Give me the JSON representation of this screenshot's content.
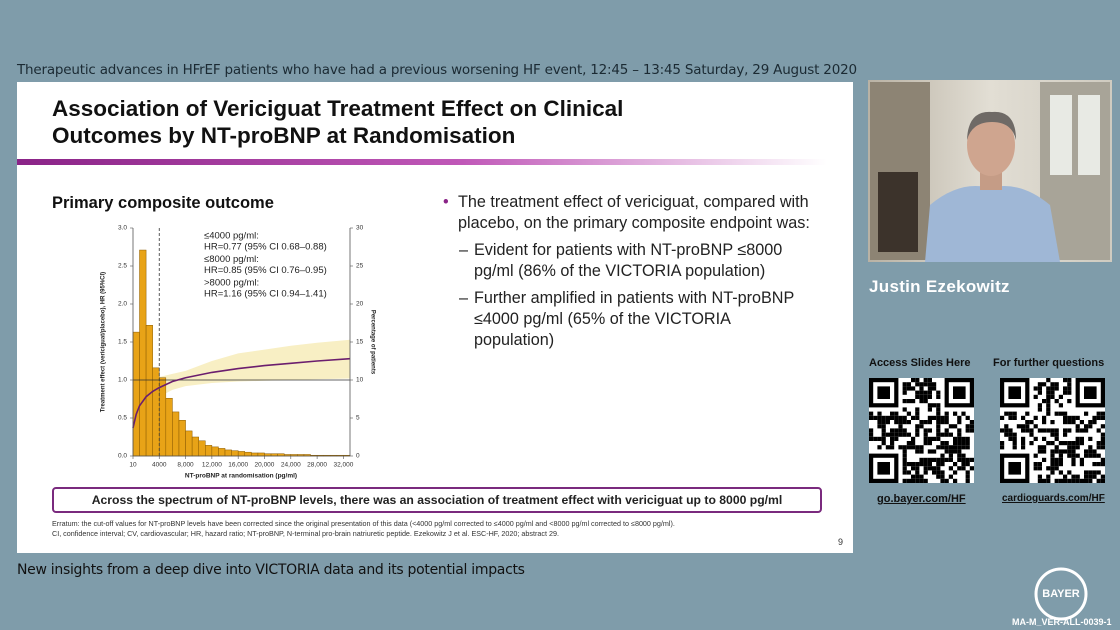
{
  "header": "Therapeutic advances in HFrEF patients who have had a previous worsening HF event, 12:45 – 13:45 Saturday, 29 August 2020",
  "slide": {
    "title": [
      "Association of Vericiguat Treatment Effect on Clinical",
      "Outcomes by NT-proBNP at Randomisation"
    ],
    "bullet": "The treatment effect of vericiguat, compared with placebo, on the primary composite endpoint was:",
    "sub_bullets": [
      "Evident for patients with NT-proBNP ≤8000 pg/ml (86% of the VICTORIA population)",
      "Further amplified in patients with NT-proBNP ≤4000 pg/ml (65% of the VICTORIA population)"
    ],
    "banner": "Across the spectrum of NT-proBNP levels, there was an association of treatment effect with vericiguat up to 8000 pg/ml",
    "footnotes": [
      "Erratum: the cut-off values for NT-proBNP levels have been corrected since the original presentation of this data (<4000 pg/ml corrected to ≤4000 pg/ml and <8000 pg/ml corrected to ≤8000 pg/ml).",
      "CI, confidence interval; CV, cardiovascular; HR, hazard ratio; NT-proBNP, N-terminal pro-brain natriuretic peptide. Ezekowitz J et al. ESC-HF, 2020; abstract 29."
    ],
    "page_number": "9"
  },
  "chart_data": {
    "type": "histogram",
    "title": "Primary composite outcome",
    "x_label": "NT-proBNP at randomisation (pg/ml)",
    "y_label": "Treatment effect (vericiguat/placebo), HR (95%CI)",
    "y2_label": "Percentage of patients",
    "annotations": [
      [
        "≤4000 pg/ml:",
        "HR=0.77 (95% CI 0.68–0.88)"
      ],
      [
        "≤8000 pg/ml:",
        "HR=0.85 (95% CI 0.76–0.95)"
      ],
      [
        ">8000 pg/ml:",
        "HR=1.16 (95% CI 0.94–1.41)"
      ]
    ],
    "bins": [
      10,
      1000,
      2000,
      3000,
      4000,
      5000,
      6000,
      7000,
      8000,
      9000,
      10000,
      11000,
      12000,
      13000,
      14000,
      15000,
      16000,
      17000,
      18000,
      19000,
      20000,
      21000,
      22000,
      23000,
      24000,
      25000,
      26000,
      27000,
      28000,
      29000,
      30000,
      31000,
      32000,
      33000
    ],
    "values": [
      16.3,
      27.1,
      17.2,
      11.6,
      10.3,
      7.6,
      5.8,
      4.7,
      3.3,
      2.5,
      2.0,
      1.4,
      1.2,
      1.0,
      0.8,
      0.7,
      0.6,
      0.5,
      0.4,
      0.4,
      0.3,
      0.3,
      0.3,
      0.2,
      0.2,
      0.2,
      0.2,
      0.1,
      0.1,
      0.1,
      0.1,
      0.1,
      0.1
    ],
    "axis": "y2",
    "color": "#e8a317",
    "lines": [
      {
        "x": [
          10,
          500,
          1000,
          2000,
          3000,
          4000,
          6000,
          8000,
          12000,
          16000,
          20000,
          24000,
          28000,
          33000
        ],
        "values": [
          0.37,
          0.55,
          0.66,
          0.78,
          0.85,
          0.9,
          0.98,
          1.03,
          1.1,
          1.15,
          1.19,
          1.22,
          1.25,
          1.28
        ],
        "lower": [
          0.1,
          0.25,
          0.4,
          0.58,
          0.7,
          0.78,
          0.87,
          0.92,
          0.96,
          0.98,
          0.99,
          1.0,
          1.01,
          1.02
        ],
        "upper": [
          0.9,
          0.95,
          0.97,
          1.0,
          1.02,
          1.04,
          1.08,
          1.12,
          1.25,
          1.35,
          1.4,
          1.45,
          1.49,
          1.53
        ],
        "color": "#6b1e6e"
      }
    ],
    "reference_y": 1.0,
    "reference_x": 4000,
    "xlim": [
      10,
      33000
    ],
    "xticks": [
      10,
      4000,
      {
        "value": 8000,
        "label": "8,000"
      },
      {
        "value": 12000,
        "label": "12,000"
      },
      {
        "value": 16000,
        "label": "16,000"
      },
      {
        "value": 20000,
        "label": "20,000"
      },
      {
        "value": 24000,
        "label": "24,000"
      },
      {
        "value": 28000,
        "label": "28,000"
      },
      {
        "value": 32000,
        "label": "32,000"
      }
    ],
    "ylim": [
      0,
      3
    ],
    "yticks": [
      {
        "value": 0,
        "label": "0.0"
      },
      0.5,
      {
        "value": 1,
        "label": "1.0"
      },
      1.5,
      {
        "value": 2,
        "label": "2.0"
      },
      2.5,
      {
        "value": 3,
        "label": "3.0"
      }
    ],
    "y2lim": [
      0,
      30
    ],
    "y2ticks": [
      0,
      5,
      10,
      15,
      20,
      25,
      30
    ]
  },
  "sidebar": {
    "presenter": "Justin Ezekowitz",
    "slides_heading": "Access  Slides Here",
    "questions_heading": "For further questions",
    "slides_link": "go.bayer.com/HF",
    "questions_link": "cardioguards.com/HF"
  },
  "footer": "New insights from a deep dive into VICTORIA data and its potential impacts",
  "logo": "BAYER",
  "code": "MA-M_VER-ALL-0039-1"
}
